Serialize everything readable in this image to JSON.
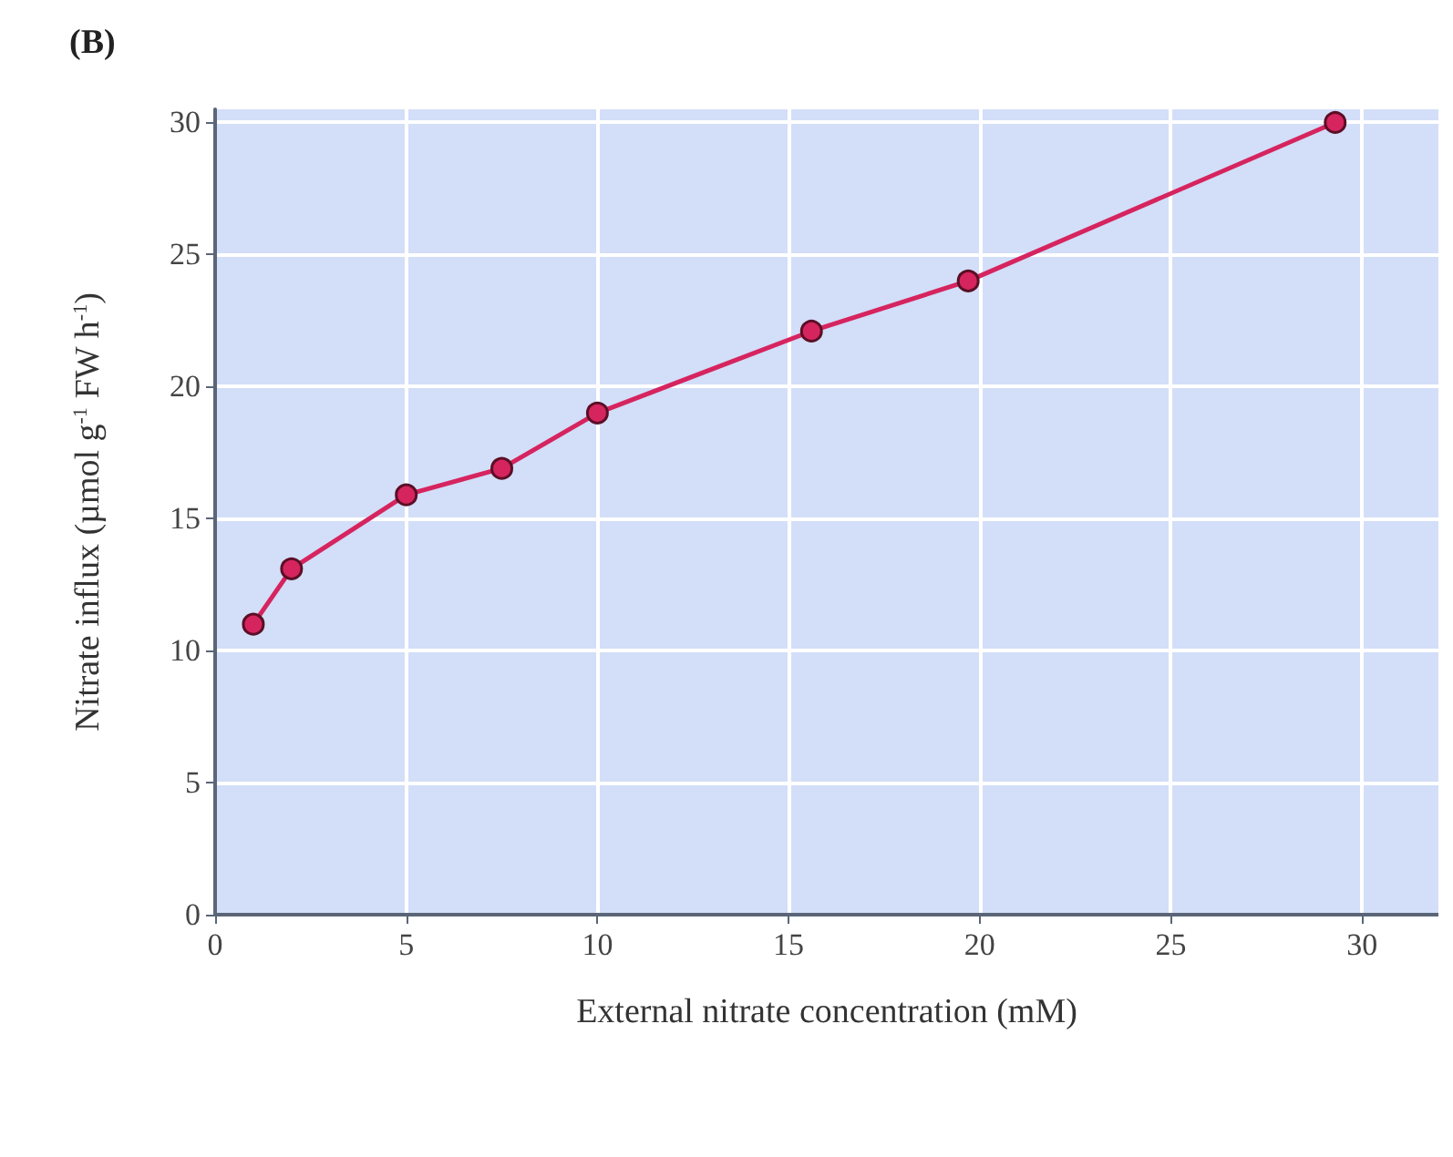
{
  "chart_data": {
    "type": "line",
    "annotations": [
      "(B)"
    ],
    "xlabel": "External nitrate concentration (mM)",
    "ylabel": "Nitrate influx (µmol g$^{-1}$ FW h$^{-1}$)",
    "x": [
      1,
      2,
      5,
      7.5,
      10,
      15.6,
      19.7,
      29.3
    ],
    "series": [
      {
        "color": "#d6245f",
        "values": [
          11,
          13.1,
          15.9,
          16.9,
          19,
          22.1,
          24,
          30
        ]
      }
    ],
    "xlim": [
      0,
      32
    ],
    "xticks": [
      0,
      5,
      10,
      15,
      20,
      25,
      30
    ],
    "ylim": [
      0,
      30.5
    ],
    "yticks": [
      0,
      5,
      10,
      15,
      20,
      25,
      30
    ],
    "grid": true,
    "marker": "circle",
    "line_style": "solid"
  }
}
